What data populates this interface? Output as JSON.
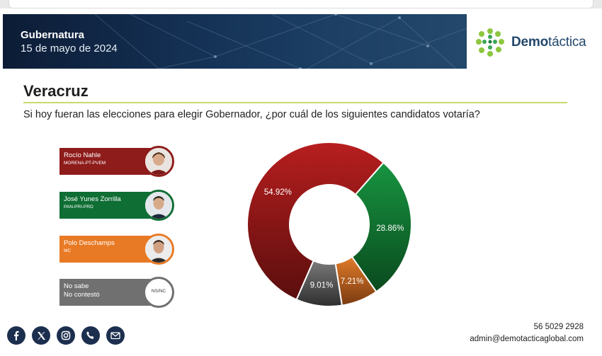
{
  "header": {
    "title": "Gubernatura",
    "date": "15 de mayo de 2024"
  },
  "brand": {
    "name_bold": "Demo",
    "name_light": "táctica"
  },
  "survey": {
    "state": "Veracruz",
    "question": "Si hoy fueran las elecciones para elegir Gobernador, ¿por cuál de los siguientes candidatos votaría?"
  },
  "candidates": [
    {
      "name": "Rocío Nahle",
      "party": "MORENA-PT-PVEM",
      "color": "#8e1c1a"
    },
    {
      "name": "José Yunes Zorrilla",
      "party": "PAN-PRI-PRD",
      "color": "#0f6e34"
    },
    {
      "name": "Polo Deschamps",
      "party": "MC",
      "color": "#e97a25"
    },
    {
      "name": "No sabe",
      "name2": "No contestó",
      "badge": "NS/NC",
      "color": "#707070"
    }
  ],
  "chart_data": {
    "type": "pie",
    "categories": [
      "Rocío Nahle",
      "José Yunes Zorrilla",
      "Polo Deschamps",
      "No sabe / No contestó"
    ],
    "values": [
      54.92,
      28.86,
      7.21,
      9.01
    ],
    "labels": [
      "54.92%",
      "28.86%",
      "7.21%",
      "9.01%"
    ],
    "colors": [
      "#b81e1e",
      "#179440",
      "#e07b2a",
      "#7a7a7a"
    ],
    "dark_colors": [
      "#5a0e0e",
      "#0a4a1e",
      "#7a3a10",
      "#2e2e2e"
    ],
    "title": "",
    "donut": true
  },
  "contact": {
    "phone": "56 5029 2928",
    "email": "admin@demotacticaglobal.com"
  },
  "social": [
    "facebook-icon",
    "x-icon",
    "instagram-icon",
    "phone-icon",
    "mail-icon"
  ]
}
